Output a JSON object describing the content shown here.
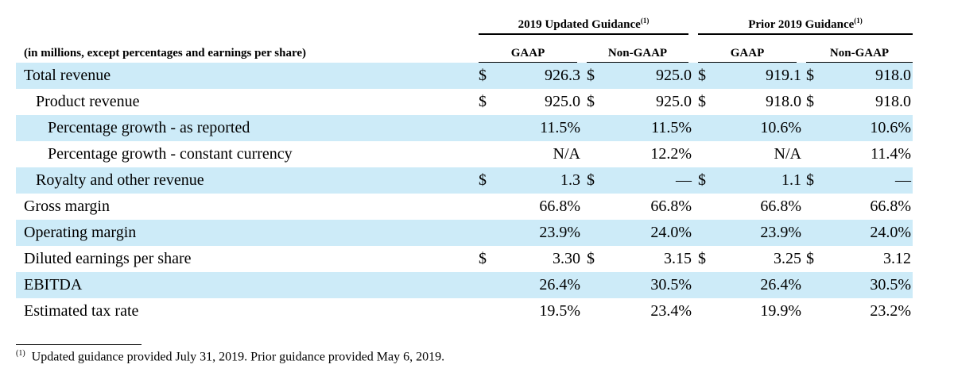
{
  "header": {
    "units_label": "(in millions, except percentages and earnings per share)",
    "groups": [
      {
        "label": "2019 Updated Guidance",
        "note": "(1)"
      },
      {
        "label": "Prior 2019 Guidance",
        "note": "(1)"
      }
    ],
    "columns": [
      "GAAP",
      "Non-GAAP",
      "GAAP",
      "Non-GAAP"
    ]
  },
  "rows": [
    {
      "label": "Total revenue",
      "currency": [
        "$",
        "$",
        "$",
        "$"
      ],
      "values": [
        "926.3",
        "925.0",
        "919.1",
        "918.0"
      ]
    },
    {
      "label": "Product revenue",
      "currency": [
        "$",
        "$",
        "$",
        "$"
      ],
      "values": [
        "925.0",
        "925.0",
        "918.0",
        "918.0"
      ]
    },
    {
      "label": "Percentage growth - as reported",
      "currency": [
        "",
        "",
        "",
        ""
      ],
      "values": [
        "11.5%",
        "11.5%",
        "10.6%",
        "10.6%"
      ]
    },
    {
      "label": "Percentage growth - constant currency",
      "currency": [
        "",
        "",
        "",
        ""
      ],
      "values": [
        "N/A",
        "12.2%",
        "N/A",
        "11.4%"
      ]
    },
    {
      "label": "Royalty and other revenue",
      "currency": [
        "$",
        "$",
        "$",
        "$"
      ],
      "values": [
        "1.3",
        "—",
        "1.1",
        "—"
      ]
    },
    {
      "label": "Gross margin",
      "currency": [
        "",
        "",
        "",
        ""
      ],
      "values": [
        "66.8%",
        "66.8%",
        "66.8%",
        "66.8%"
      ]
    },
    {
      "label": "Operating margin",
      "currency": [
        "",
        "",
        "",
        ""
      ],
      "values": [
        "23.9%",
        "24.0%",
        "23.9%",
        "24.0%"
      ]
    },
    {
      "label": "Diluted earnings per share",
      "currency": [
        "$",
        "$",
        "$",
        "$"
      ],
      "values": [
        "3.30",
        "3.15",
        "3.25",
        "3.12"
      ]
    },
    {
      "label": "EBITDA",
      "currency": [
        "",
        "",
        "",
        ""
      ],
      "values": [
        "26.4%",
        "30.5%",
        "26.4%",
        "30.5%"
      ]
    },
    {
      "label": "Estimated tax rate",
      "currency": [
        "",
        "",
        "",
        ""
      ],
      "values": [
        "19.5%",
        "23.4%",
        "19.9%",
        "23.2%"
      ]
    }
  ],
  "footnote": {
    "marker": "(1)",
    "text": "Updated guidance provided July 31, 2019. Prior guidance provided May 6, 2019."
  },
  "colors": {
    "row_shade": "#cdebf8",
    "text": "#000000"
  }
}
